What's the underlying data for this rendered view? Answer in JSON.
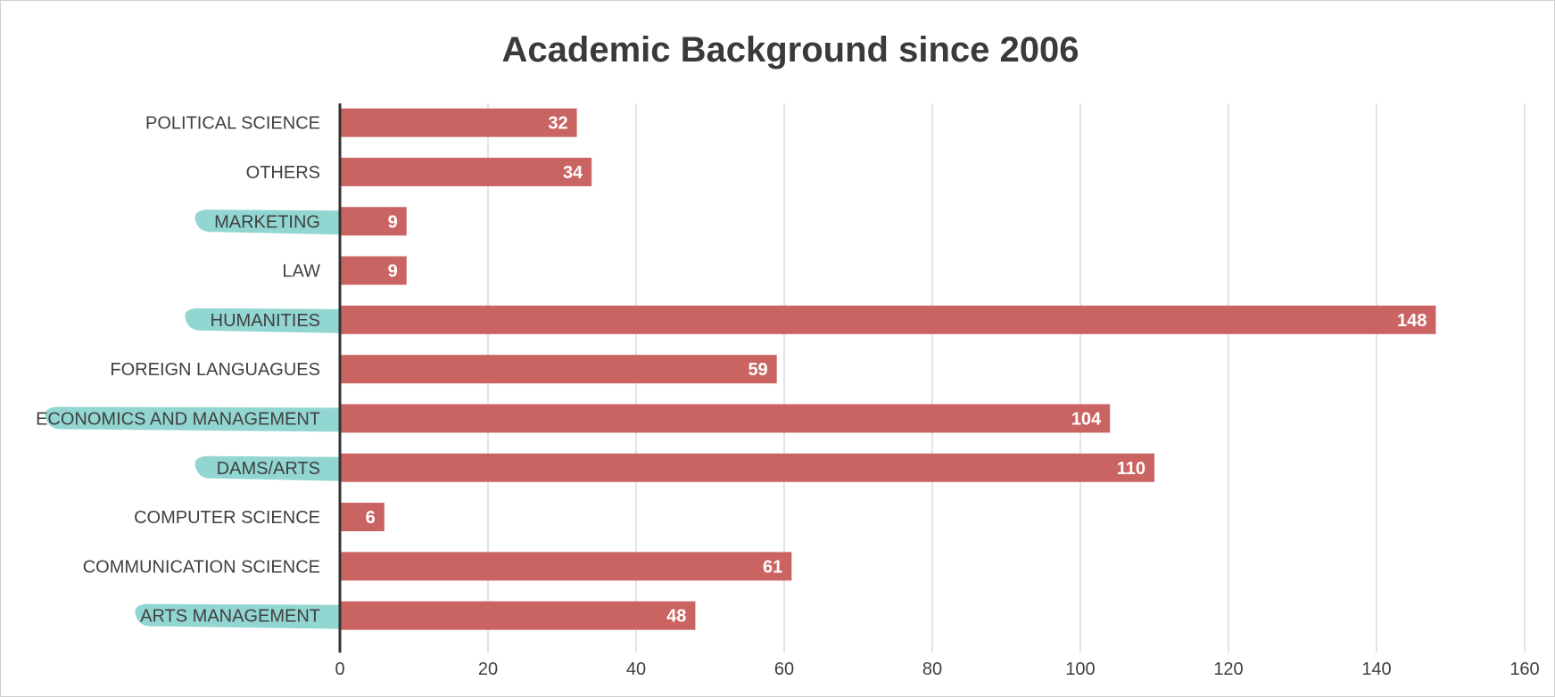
{
  "chart_data": {
    "type": "bar",
    "orientation": "horizontal",
    "title": "Academic Background since 2006",
    "xlabel": "",
    "ylabel": "",
    "categories": [
      "POLITICAL SCIENCE",
      "OTHERS",
      "MARKETING",
      "LAW",
      "HUMANITIES",
      "FOREIGN LANGUAGUES",
      "ECONOMICS AND MANAGEMENT",
      "DAMS/ARTS",
      "COMPUTER SCIENCE",
      "COMMUNICATION SCIENCE",
      "ARTS MANAGEMENT"
    ],
    "values": [
      32,
      34,
      9,
      9,
      148,
      59,
      104,
      110,
      6,
      61,
      48
    ],
    "highlighted_categories": [
      "MARKETING",
      "HUMANITIES",
      "ECONOMICS AND MANAGEMENT",
      "DAMS/ARTS",
      "ARTS MANAGEMENT"
    ],
    "xlim": [
      0,
      160
    ],
    "ticks": [
      "0",
      "20",
      "40",
      "60",
      "80",
      "100",
      "120",
      "140",
      "160"
    ],
    "grid": "vertical",
    "legend": "none",
    "colors": {
      "bar": "#c96462",
      "highlight": "#7fcfc9",
      "grid": "#c8c8c8",
      "axis": "#333333",
      "title": "#3a3a3a",
      "text": "#404040"
    }
  }
}
